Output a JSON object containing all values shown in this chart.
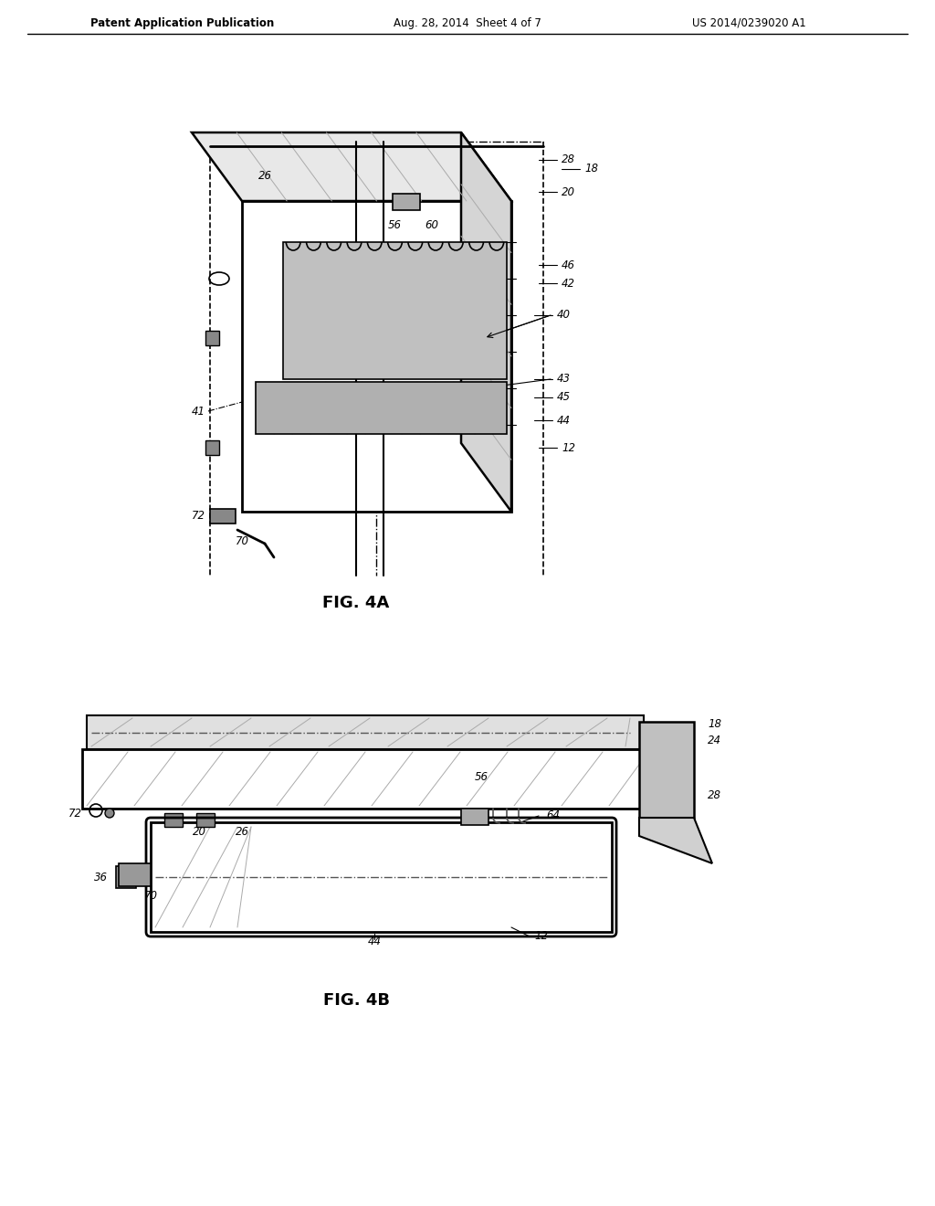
{
  "background_color": "#ffffff",
  "header_left": "Patent Application Publication",
  "header_center": "Aug. 28, 2014  Sheet 4 of 7",
  "header_right": "US 2014/0239020 A1",
  "fig4a_caption": "FIG. 4A",
  "fig4b_caption": "FIG. 4B",
  "line_color": "#000000",
  "light_gray": "#cccccc",
  "medium_gray": "#999999",
  "dark_gray": "#555555",
  "hatch_gray": "#888888"
}
